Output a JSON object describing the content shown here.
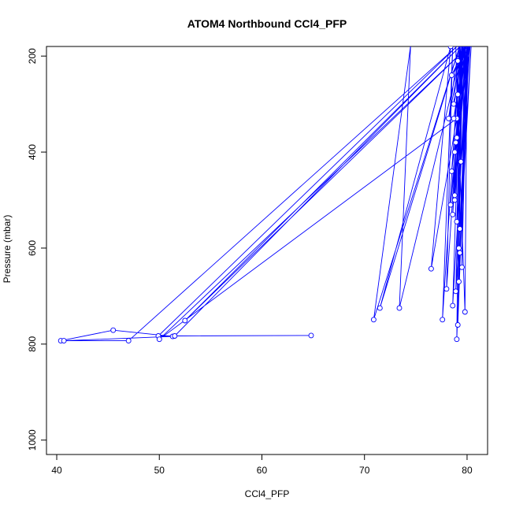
{
  "chart_data": {
    "type": "line",
    "title": "ATOM4 Northbound CCl4_PFP",
    "xlabel": "CCl4_PFP",
    "ylabel": "Pressure (mbar)",
    "xlim": [
      39,
      82
    ],
    "ylim": [
      1030,
      180
    ],
    "y_reversed": true,
    "x_ticks": [
      40,
      50,
      60,
      70,
      80
    ],
    "y_ticks": [
      200,
      400,
      600,
      800,
      1000
    ],
    "grid": false,
    "legend": "none",
    "series_color": "#0000ff",
    "series": [
      {
        "x": [
          40.4,
          45.5,
          51.3,
          40.7,
          47.0,
          79.1,
          49.9,
          64.8,
          51.5,
          79.4,
          52.5,
          80.2,
          50.0,
          79.0,
          76.5,
          78.4,
          71.5,
          79.3,
          70.9,
          74.5,
          73.4,
          79.6,
          78.0,
          78.6,
          77.6,
          79.3,
          79.0,
          80.0,
          78.4,
          79.6,
          78.2,
          79.2,
          78.8,
          79.9,
          78.5,
          79.4,
          79.1,
          80.1,
          78.7,
          79.8,
          78.6,
          79.5,
          79.2,
          80.2,
          78.9,
          79.7,
          79.1,
          79.9,
          78.5,
          80.3,
          79.0,
          79.6,
          78.8,
          80.0,
          79.3,
          80.4,
          78.9,
          79.6,
          79.2,
          80.1,
          78.6,
          79.4,
          79.0,
          80.3,
          78.8,
          79.7,
          79.5,
          80.0,
          79.1,
          78.7,
          80.2,
          79.3,
          78.9,
          79.8,
          80.0,
          79.4
        ],
        "y": [
          793,
          771,
          784,
          793,
          793,
          178,
          783,
          782,
          783,
          178,
          751,
          178,
          790,
          330,
          643,
          180,
          725,
          178,
          749,
          178,
          725,
          178,
          685,
          178,
          749,
          178,
          790,
          178,
          510,
          178,
          330,
          178,
          500,
          178,
          440,
          178,
          760,
          178,
          330,
          178,
          530,
          178,
          670,
          178,
          380,
          178,
          280,
          178,
          240,
          178,
          370,
          178,
          490,
          178,
          610,
          178,
          690,
          178,
          600,
          178,
          720,
          178,
          545,
          178,
          400,
          178,
          640,
          178,
          210,
          300,
          178,
          560,
          178,
          733,
          178,
          420
        ]
      }
    ]
  }
}
